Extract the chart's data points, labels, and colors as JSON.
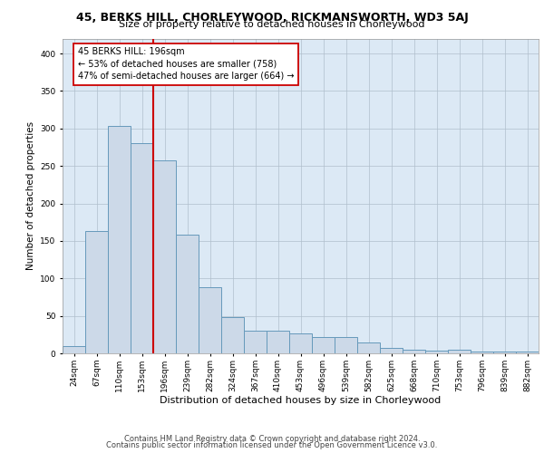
{
  "title1": "45, BERKS HILL, CHORLEYWOOD, RICKMANSWORTH, WD3 5AJ",
  "title2": "Size of property relative to detached houses in Chorleywood",
  "xlabel": "Distribution of detached houses by size in Chorleywood",
  "ylabel": "Number of detached properties",
  "bin_labels": [
    "24sqm",
    "67sqm",
    "110sqm",
    "153sqm",
    "196sqm",
    "239sqm",
    "282sqm",
    "324sqm",
    "367sqm",
    "410sqm",
    "453sqm",
    "496sqm",
    "539sqm",
    "582sqm",
    "625sqm",
    "668sqm",
    "710sqm",
    "753sqm",
    "796sqm",
    "839sqm",
    "882sqm"
  ],
  "bar_heights": [
    10,
    163,
    303,
    280,
    257,
    158,
    88,
    48,
    30,
    30,
    26,
    22,
    22,
    14,
    7,
    5,
    4,
    5,
    3,
    2,
    3
  ],
  "bar_color": "#ccd9e8",
  "bar_edge_color": "#6699bb",
  "vline_color": "#cc0000",
  "vline_idx": 4,
  "annotation_text": "45 BERKS HILL: 196sqm\n← 53% of detached houses are smaller (758)\n47% of semi-detached houses are larger (664) →",
  "annotation_box_facecolor": "white",
  "annotation_box_edgecolor": "#cc0000",
  "ylim": [
    0,
    420
  ],
  "yticks": [
    0,
    50,
    100,
    150,
    200,
    250,
    300,
    350,
    400
  ],
  "grid_color": "#b0bfcc",
  "plot_bg_color": "#dce9f5",
  "fig_bg_color": "#ffffff",
  "footer_line1": "Contains HM Land Registry data © Crown copyright and database right 2024.",
  "footer_line2": "Contains public sector information licensed under the Open Government Licence v3.0.",
  "title1_fontsize": 9,
  "title2_fontsize": 8,
  "ylabel_fontsize": 7.5,
  "xlabel_fontsize": 8,
  "tick_fontsize": 6.5,
  "annot_fontsize": 7,
  "footer_fontsize": 6
}
